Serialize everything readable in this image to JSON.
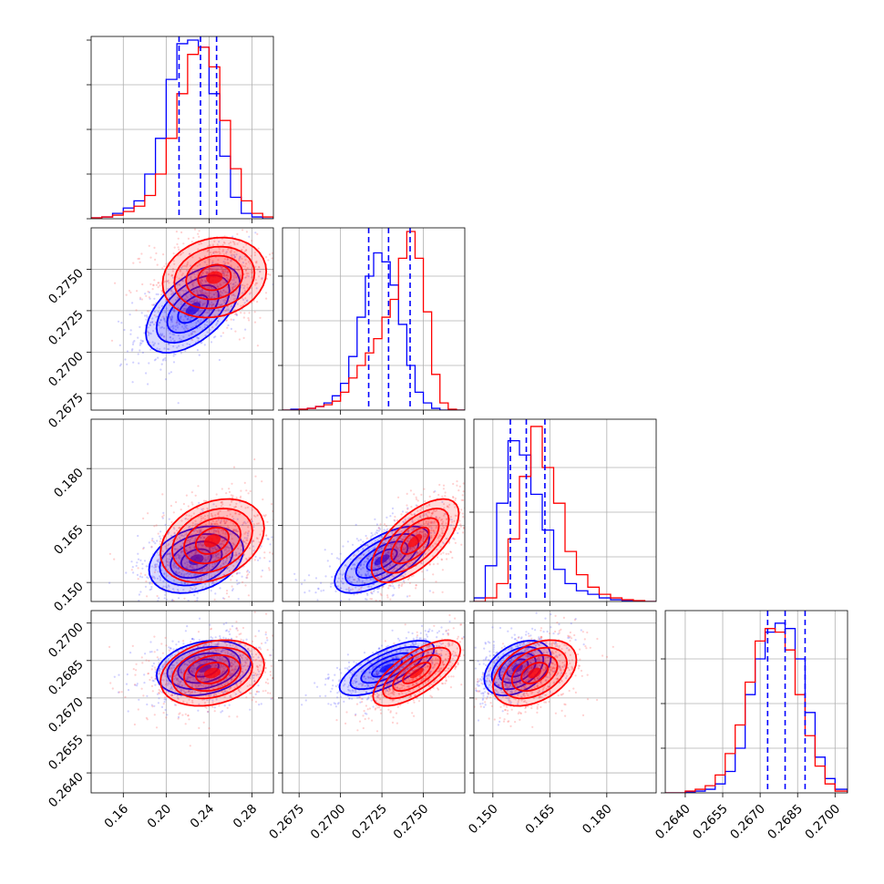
{
  "chart_data": {
    "type": "corner",
    "grid": true,
    "series": [
      {
        "name": "",
        "color": "#0000ff"
      },
      {
        "name": "",
        "color": "#ff0000"
      }
    ],
    "parameters": [
      {
        "range": [
          0.13,
          0.3
        ],
        "ticks": [
          0.16,
          0.2,
          0.24,
          0.28
        ],
        "tick_labels": [
          "0.16",
          "0.20",
          "0.24",
          "0.28"
        ],
        "quantiles": [
          0.212,
          0.232,
          0.247
        ],
        "hist_bins": [
          0.13,
          0.14,
          0.15,
          0.16,
          0.17,
          0.18,
          0.19,
          0.2,
          0.21,
          0.22,
          0.23,
          0.24,
          0.25,
          0.26,
          0.27,
          0.28,
          0.29,
          0.3
        ],
        "hist_blue": [
          0.005,
          0.01,
          0.03,
          0.06,
          0.1,
          0.25,
          0.45,
          0.78,
          0.98,
          1.0,
          0.96,
          0.7,
          0.35,
          0.12,
          0.03,
          0.01,
          0.0
        ],
        "hist_red": [
          0.005,
          0.01,
          0.02,
          0.04,
          0.07,
          0.13,
          0.25,
          0.45,
          0.7,
          0.92,
          0.96,
          0.85,
          0.55,
          0.28,
          0.1,
          0.03,
          0.01
        ]
      },
      {
        "range": [
          0.2665,
          0.2775
        ],
        "ticks": [
          0.2675,
          0.27,
          0.2725,
          0.275
        ],
        "tick_labels": [
          "0.2675",
          "0.2700",
          "0.2725",
          "0.2750"
        ],
        "quantiles": [
          0.2717,
          0.2729,
          0.2742
        ],
        "hist_bins": [
          0.2665,
          0.267,
          0.2675,
          0.268,
          0.2685,
          0.269,
          0.2695,
          0.27,
          0.2705,
          0.271,
          0.2715,
          0.272,
          0.2725,
          0.273,
          0.2735,
          0.274,
          0.2745,
          0.275,
          0.2755,
          0.276,
          0.2765,
          0.277,
          0.2775
        ],
        "hist_blue": [
          0.0,
          0.005,
          0.005,
          0.01,
          0.02,
          0.04,
          0.08,
          0.15,
          0.3,
          0.52,
          0.75,
          0.88,
          0.83,
          0.7,
          0.48,
          0.25,
          0.1,
          0.04,
          0.01,
          0.0,
          0.0,
          0.0
        ],
        "hist_red": [
          0.0,
          0.0,
          0.005,
          0.01,
          0.02,
          0.03,
          0.05,
          0.1,
          0.18,
          0.25,
          0.32,
          0.4,
          0.52,
          0.62,
          0.85,
          1.0,
          0.85,
          0.55,
          0.2,
          0.04,
          0.005,
          0.0
        ]
      },
      {
        "range": [
          0.145,
          0.193
        ],
        "ticks": [
          0.15,
          0.165,
          0.18
        ],
        "tick_labels": [
          "0.150",
          "0.165",
          "0.180"
        ],
        "quantiles": [
          0.1546,
          0.1588,
          0.1637
        ],
        "hist_bins": [
          0.145,
          0.148,
          0.151,
          0.154,
          0.157,
          0.16,
          0.163,
          0.166,
          0.169,
          0.172,
          0.175,
          0.178,
          0.181,
          0.184,
          0.187,
          0.19,
          0.193
        ],
        "hist_blue": [
          0.02,
          0.2,
          0.55,
          0.9,
          0.82,
          0.6,
          0.4,
          0.18,
          0.1,
          0.06,
          0.04,
          0.02,
          0.01,
          0.005,
          0.0,
          0.0
        ],
        "hist_red": [
          0.0,
          0.02,
          0.1,
          0.35,
          0.7,
          0.98,
          0.75,
          0.55,
          0.28,
          0.15,
          0.08,
          0.04,
          0.02,
          0.01,
          0.005,
          0.0
        ]
      },
      {
        "range": [
          0.2632,
          0.2705
        ],
        "ticks": [
          0.264,
          0.2655,
          0.267,
          0.2685,
          0.27
        ],
        "tick_labels": [
          "0.2640",
          "0.2655",
          "0.2670",
          "0.2685",
          "0.2700"
        ],
        "quantiles": [
          0.2673,
          0.268,
          0.2688
        ],
        "hist_bins": [
          0.2632,
          0.2636,
          0.264,
          0.2644,
          0.2648,
          0.2652,
          0.2656,
          0.266,
          0.2664,
          0.2668,
          0.2672,
          0.2676,
          0.268,
          0.2684,
          0.2688,
          0.2692,
          0.2696,
          0.27,
          0.2705
        ],
        "hist_blue": [
          0.0,
          0.0,
          0.005,
          0.01,
          0.02,
          0.05,
          0.12,
          0.25,
          0.55,
          0.75,
          0.9,
          0.95,
          0.92,
          0.75,
          0.45,
          0.2,
          0.08,
          0.02
        ],
        "hist_red": [
          0.0,
          0.0,
          0.01,
          0.02,
          0.04,
          0.1,
          0.22,
          0.38,
          0.62,
          0.85,
          0.92,
          0.9,
          0.8,
          0.55,
          0.32,
          0.15,
          0.05,
          0.01
        ]
      }
    ],
    "pairs": [
      {
        "row": 1,
        "col": 0,
        "blue": {
          "mean": [
            0.225,
            0.2726
          ],
          "sd": [
            0.02,
            0.0012
          ],
          "rho": 0.55
        },
        "red": {
          "mean": [
            0.245,
            0.2745
          ],
          "sd": [
            0.022,
            0.0011
          ],
          "rho": 0.15
        }
      },
      {
        "row": 2,
        "col": 0,
        "blue": {
          "mean": [
            0.228,
            0.156
          ],
          "sd": [
            0.02,
            0.004
          ],
          "rho": 0.3
        },
        "red": {
          "mean": [
            0.243,
            0.161
          ],
          "sd": [
            0.022,
            0.005
          ],
          "rho": 0.3
        }
      },
      {
        "row": 2,
        "col": 1,
        "blue": {
          "mean": [
            0.2725,
            0.156
          ],
          "sd": [
            0.0013,
            0.004
          ],
          "rho": 0.65
        },
        "red": {
          "mean": [
            0.2745,
            0.161
          ],
          "sd": [
            0.0012,
            0.005
          ],
          "rho": 0.65
        }
      },
      {
        "row": 3,
        "col": 0,
        "blue": {
          "mean": [
            0.235,
            0.2682
          ],
          "sd": [
            0.02,
            0.0005
          ],
          "rho": 0.25
        },
        "red": {
          "mean": [
            0.243,
            0.268
          ],
          "sd": [
            0.022,
            0.0006
          ],
          "rho": 0.25
        }
      },
      {
        "row": 3,
        "col": 1,
        "blue": {
          "mean": [
            0.2728,
            0.2682
          ],
          "sd": [
            0.0013,
            0.0005
          ],
          "rho": 0.7
        },
        "red": {
          "mean": [
            0.2746,
            0.268
          ],
          "sd": [
            0.0012,
            0.0006
          ],
          "rho": 0.7
        }
      },
      {
        "row": 3,
        "col": 2,
        "blue": {
          "mean": [
            0.1565,
            0.2682
          ],
          "sd": [
            0.004,
            0.0005
          ],
          "rho": 0.4
        },
        "red": {
          "mean": [
            0.161,
            0.268
          ],
          "sd": [
            0.005,
            0.0006
          ],
          "rho": 0.4
        }
      }
    ]
  }
}
